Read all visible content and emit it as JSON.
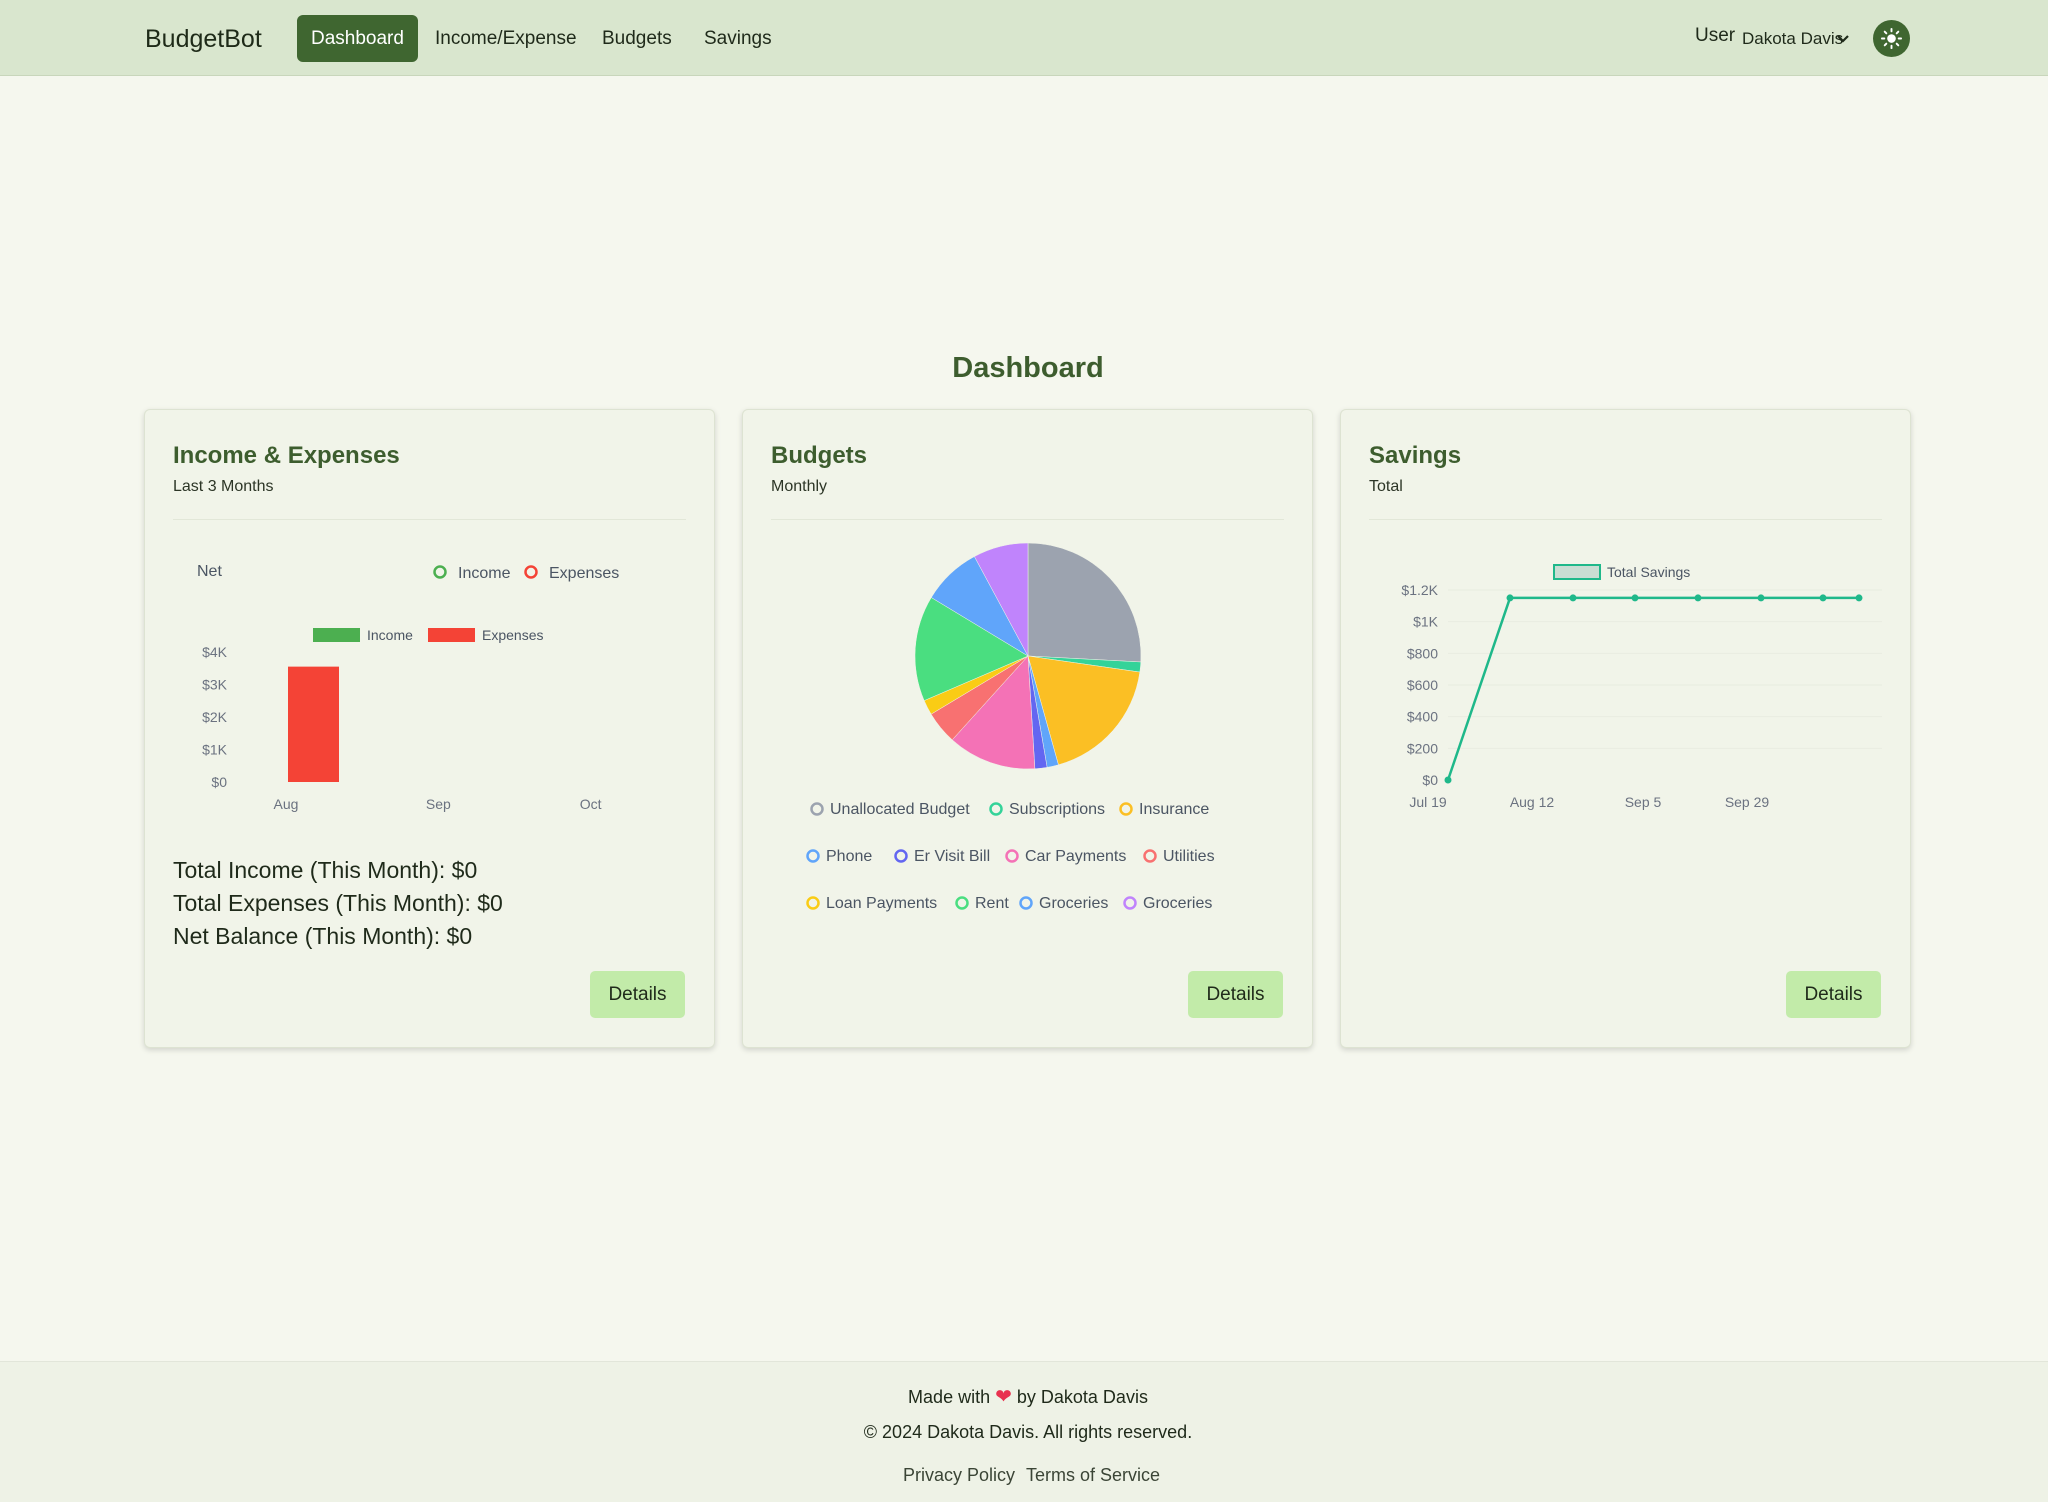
{
  "nav": {
    "brand": "BudgetBot",
    "items": [
      "Dashboard",
      "Income/Expense",
      "Budgets",
      "Savings"
    ],
    "active_index": 0,
    "user_label": "User",
    "user_name": "Dakota Davis",
    "theme_icon": "sun-icon"
  },
  "page": {
    "title": "Dashboard"
  },
  "cards": {
    "income": {
      "title": "Income & Expenses",
      "subtitle": "Last 3 Months",
      "details_label": "Details",
      "summary": [
        "Total Income (This Month): $0",
        "Total Expenses (This Month): $0",
        "Net Balance (This Month): $0"
      ]
    },
    "budgets": {
      "title": "Budgets",
      "subtitle": "Monthly",
      "details_label": "Details"
    },
    "savings": {
      "title": "Savings",
      "subtitle": "Total",
      "details_label": "Details"
    }
  },
  "chart_data": [
    {
      "type": "bar",
      "title": "Net",
      "legend_top": [
        "Income",
        "Expenses"
      ],
      "categories": [
        "Aug",
        "Sep",
        "Oct"
      ],
      "series": [
        {
          "name": "Income",
          "values": [
            0,
            0,
            0
          ],
          "color": "#4caf50"
        },
        {
          "name": "Expenses",
          "values": [
            3550,
            0,
            0
          ],
          "color": "#f44336"
        }
      ],
      "ylim": [
        0,
        4000
      ],
      "yticks": [
        "$0",
        "$1K",
        "$2K",
        "$3K",
        "$4K"
      ],
      "ytick_values": [
        0,
        1000,
        2000,
        3000,
        4000
      ],
      "legend_colors": [
        "#4caf50",
        "#f44336"
      ]
    },
    {
      "type": "pie",
      "labels": [
        "Unallocated Budget",
        "Subscriptions",
        "Insurance",
        "Phone",
        "Er Visit Bill",
        "Car Payments",
        "Utilities",
        "Loan Payments",
        "Rent",
        "Groceries",
        "Groceries"
      ],
      "values": [
        25.3,
        1.4,
        18.0,
        1.6,
        1.7,
        12.4,
        4.6,
        2.1,
        14.8,
        8.3,
        7.7
      ],
      "colors": [
        "#9ca3af",
        "#34d399",
        "#fbbf24",
        "#60a5fa",
        "#6366f1",
        "#f472b6",
        "#f87171",
        "#facc15",
        "#4ade80",
        "#60a5fa",
        "#c084fc"
      ],
      "legend_ring_colors": [
        "#9ca3af",
        "#34d399",
        "#fbbf24",
        "#60a5fa",
        "#6366f1",
        "#f472b6",
        "#f87171",
        "#facc15",
        "#4ade80",
        "#60a5fa",
        "#c084fc"
      ]
    },
    {
      "type": "line",
      "series_name": "Total Savings",
      "color": "#1fb88a",
      "x_labels": [
        "Jul 19",
        "Aug 12",
        "Sep 5",
        "Sep 29"
      ],
      "values": [
        0,
        1150,
        1150,
        1150,
        1150,
        1150,
        1150,
        1150
      ],
      "ylim": [
        0,
        1200
      ],
      "yticks": [
        "$0",
        "$200",
        "$400",
        "$600",
        "$800",
        "$1K",
        "$1.2K"
      ],
      "ytick_values": [
        0,
        200,
        400,
        600,
        800,
        1000,
        1200
      ]
    }
  ],
  "footer": {
    "made_with": "Made with",
    "by": "by Dakota Davis",
    "copyright": "© 2024 Dakota Davis. All rights reserved.",
    "links": [
      "Privacy Policy",
      "Terms of Service"
    ]
  }
}
